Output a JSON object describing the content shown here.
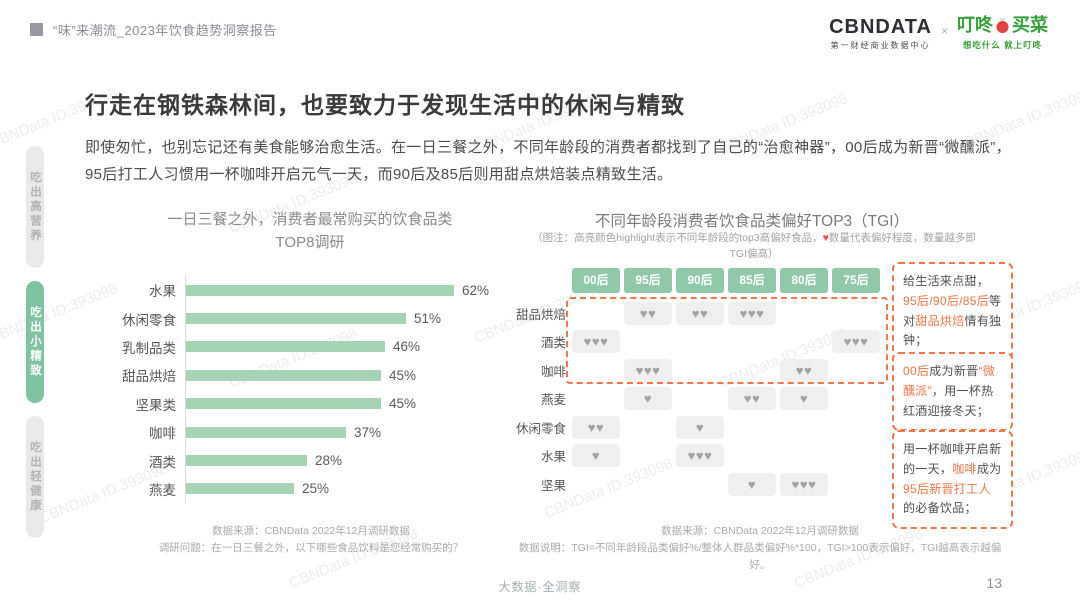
{
  "header": {
    "report_title": "“味”来潮流_2023年饮食趋势洞察报告",
    "logo_cbndata": "CBNDATA",
    "logo_cbndata_sub": "第一财经商业数据中心",
    "logo_separator": "×",
    "logo_dingdong_left": "叮咚",
    "logo_dingdong_right": "买菜",
    "logo_dingdong_sub": "想吃什么 就上叮咚"
  },
  "sidebar": {
    "items": [
      {
        "label": "吃出高营养",
        "active": false
      },
      {
        "label": "吃出小精致",
        "active": true
      },
      {
        "label": "吃出轻健康",
        "active": false
      }
    ]
  },
  "main": {
    "title": "行走在钢铁森林间，也要致力于发现生活中的休闲与精致",
    "paragraph": "即使匆忙，也别忘记还有美食能够治愈生活。在一日三餐之外，不同年龄段的消费者都找到了自己的“治愈神器”，00后成为新晋“微醺派”，95后打工人习惯用一杯咖啡开启元气一天，而90后及85后则用甜点烘焙装点精致生活。"
  },
  "chart_data": [
    {
      "type": "bar",
      "orientation": "horizontal",
      "title": "一日三餐之外，消费者最常购买的饮食品类",
      "subtitle": "TOP8调研",
      "categories": [
        "水果",
        "休闲零食",
        "乳制品类",
        "甜品烘焙",
        "坚果类",
        "咖啡",
        "酒类",
        "燕麦"
      ],
      "values": [
        62,
        51,
        46,
        45,
        45,
        37,
        28,
        25
      ],
      "unit": "%",
      "xlim": [
        0,
        65
      ],
      "bar_color": "#a5d4b5",
      "grid": false,
      "source": "数据来源：CBNData 2022年12月调研数据",
      "note": "调研问题：在一日三餐之外，以下哪些食品饮料是您经常购买的？"
    },
    {
      "type": "heatmap",
      "title": "不同年龄段消费者饮食品类偏好TOP3（TGI）",
      "legend_note_pre": "（图注：高亮颜色highlight表示不同年龄段的top3高偏好食品，",
      "legend_note_heart": "♥",
      "legend_note_post": "数量代表偏好程度，数量越多即TGI偏高）",
      "columns": [
        "00后",
        "95后",
        "90后",
        "85后",
        "80后",
        "75后"
      ],
      "rows": [
        "甜品烘焙",
        "酒类",
        "咖啡",
        "燕麦",
        "休闲零食",
        "水果",
        "坚果"
      ],
      "heart_counts": [
        [
          0,
          2,
          2,
          3,
          0,
          0
        ],
        [
          3,
          0,
          0,
          0,
          0,
          3
        ],
        [
          0,
          3,
          0,
          0,
          2,
          0
        ],
        [
          0,
          1,
          0,
          2,
          1,
          0
        ],
        [
          2,
          0,
          1,
          0,
          0,
          0
        ],
        [
          1,
          0,
          3,
          0,
          0,
          0
        ],
        [
          0,
          0,
          0,
          1,
          3,
          0
        ]
      ],
      "highlighted_rows": [
        "甜品烘焙",
        "酒类",
        "咖啡"
      ],
      "heart_symbol": "♥",
      "source": "数据来源：CBNData 2022年12月调研数据",
      "note": "数据说明：TGI=不同年龄段品类偏好%/整体人群品类偏好%*100，TGI>100表示偏好，TGI越高表示越偏好。"
    }
  ],
  "annotations": [
    {
      "segments": [
        {
          "text": "给生活来点甜，",
          "highlight": false
        },
        {
          "text": "95后/90后/85后",
          "highlight": true
        },
        {
          "text": "等对",
          "highlight": false
        },
        {
          "text": "甜品烘焙",
          "highlight": true
        },
        {
          "text": "情有独钟；",
          "highlight": false
        }
      ]
    },
    {
      "segments": [
        {
          "text": "00后",
          "highlight": true
        },
        {
          "text": "成为新晋",
          "highlight": false
        },
        {
          "text": "“微醺派”",
          "highlight": true
        },
        {
          "text": "，用一杯热红酒迎接冬天；",
          "highlight": false
        }
      ]
    },
    {
      "segments": [
        {
          "text": "用一杯咖啡开启新的一天，",
          "highlight": false
        },
        {
          "text": "咖啡",
          "highlight": true
        },
        {
          "text": "成为",
          "highlight": false
        },
        {
          "text": "95后新晋打工人",
          "highlight": true
        },
        {
          "text": "的必备饮品；",
          "highlight": false
        }
      ]
    }
  ],
  "footer": {
    "center": "大数据·全洞察",
    "page_number": "13"
  },
  "watermark": {
    "text": "CBNData ID:393098"
  },
  "colors": {
    "tab_active_green": "#7ec4a0",
    "bar_green": "#a5d4b5",
    "matrix_header_green": "#8fc9a8",
    "accent_orange": "#ee7848",
    "heart_gray": "#a2a2a6",
    "cell_gray": "#efeff0",
    "note_heart_red": "#e84a4a",
    "dingdong_green": "#35a138",
    "radish_red": "#e8403e"
  }
}
